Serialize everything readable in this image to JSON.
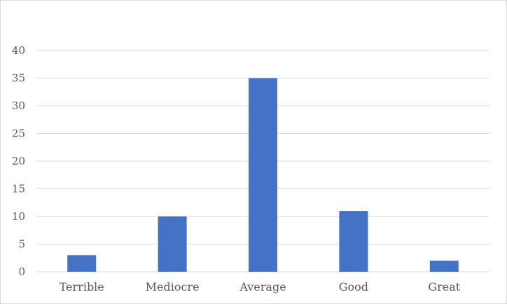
{
  "chart_data": {
    "type": "bar",
    "title": "",
    "xlabel": "",
    "ylabel": "",
    "categories": [
      "Terrible",
      "Mediocre",
      "Average",
      "Good",
      "Great"
    ],
    "values": [
      3,
      10,
      35,
      11,
      2
    ],
    "ylim": [
      0,
      40
    ],
    "yticks": [
      0,
      5,
      10,
      15,
      20,
      25,
      30,
      35,
      40
    ],
    "grid": true,
    "legend": "none",
    "bar_color": "#4472c4",
    "grid_color": "#d9d9d9",
    "label_color": "#595959"
  }
}
